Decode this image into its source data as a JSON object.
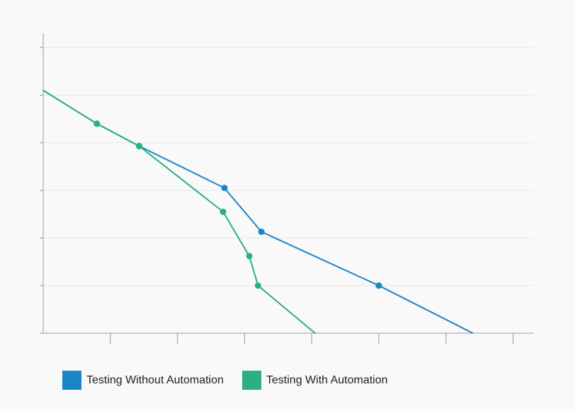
{
  "chart_data": {
    "type": "line",
    "title": "",
    "xlabel": "",
    "ylabel": "",
    "xlim": [
      0,
      7.3
    ],
    "ylim": [
      0,
      6.3
    ],
    "grid": true,
    "legend_position": "bottom-left",
    "series": [
      {
        "name": "Testing Without Automation",
        "color": "#1a85c7",
        "points": [
          [
            0,
            5.1
          ],
          [
            0.8,
            4.4
          ],
          [
            1.43,
            3.93
          ],
          [
            2.7,
            3.05
          ],
          [
            3.25,
            2.13
          ],
          [
            5,
            1
          ],
          [
            6.4,
            0
          ]
        ]
      },
      {
        "name": "Testing With Automation",
        "color": "#2baf83",
        "points": [
          [
            0,
            5.1
          ],
          [
            0.8,
            4.4
          ],
          [
            1.43,
            3.93
          ],
          [
            2.68,
            2.55
          ],
          [
            3.07,
            1.62
          ],
          [
            3.2,
            1
          ],
          [
            4.05,
            0
          ]
        ]
      }
    ]
  },
  "legend": {
    "items": [
      {
        "label": "Testing Without Automation",
        "color": "#1a85c7"
      },
      {
        "label": "Testing With Automation",
        "color": "#2baf83"
      }
    ]
  }
}
